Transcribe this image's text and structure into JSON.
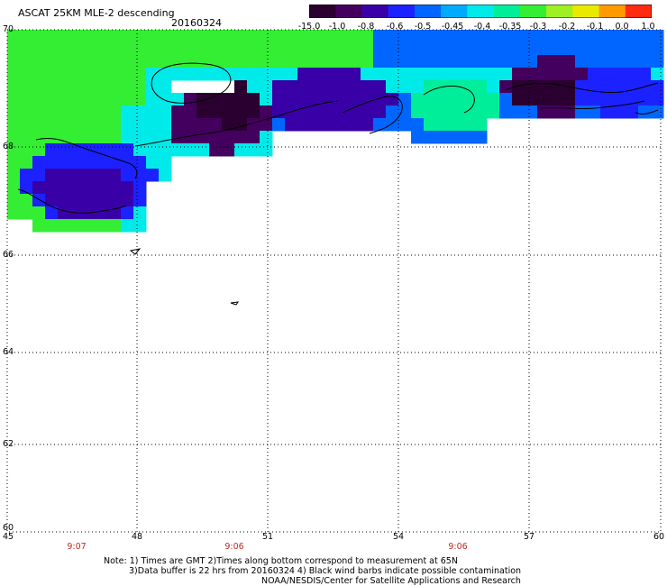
{
  "header": {
    "title": "ASCAT 25KM MLE-2 descending",
    "date": "20160324"
  },
  "colorbar": {
    "ticks": [
      "-15.0",
      "-1.0",
      "-0.8",
      "-0.6",
      "-0.5",
      "-0.45",
      "-0.4",
      "-0.35",
      "-0.3",
      "-0.2",
      "-0.1",
      "0.0",
      "1.0"
    ],
    "colors": [
      "#2a0030",
      "#43005e",
      "#3a00a8",
      "#1c22ff",
      "#0066ff",
      "#00aaff",
      "#00eaea",
      "#00ee9a",
      "#33ee33",
      "#9ef022",
      "#eaea00",
      "#ff9a00",
      "#ff2a10"
    ]
  },
  "map": {
    "lat_labels": [
      "70",
      "68",
      "66",
      "64",
      "62",
      "60"
    ],
    "lon_labels": [
      "45",
      "48",
      "51",
      "54",
      "57",
      "60"
    ],
    "time_labels": [
      "9:07",
      "9:06",
      "9:06"
    ],
    "lat_range": [
      60,
      70
    ],
    "lon_range": [
      45,
      60
    ]
  },
  "notes": {
    "line1": "Note: 1) Times are GMT 2)Times along bottom correspond to measurement at 65N",
    "line2": "3)Data buffer is 22 hrs from 20160324 4) Black wind barbs indicate possible contamination",
    "line3": "NOAA/NESDIS/Center for Satellite Applications and Research"
  }
}
